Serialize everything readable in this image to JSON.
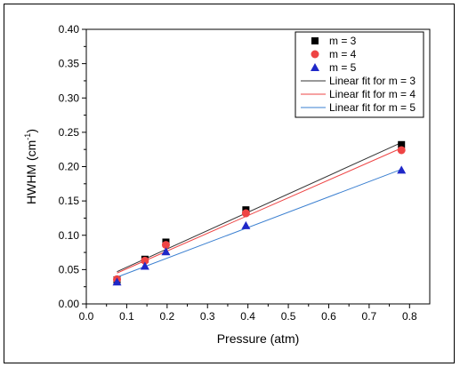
{
  "chart_data": {
    "type": "scatter",
    "title": "",
    "xlabel": "Pressure (atm)",
    "ylabel_main": "HWHM (cm",
    "ylabel_sup": "-1",
    "ylabel_close": ")",
    "xlim": [
      0.0,
      0.85
    ],
    "ylim": [
      0.0,
      0.4
    ],
    "xticks": [
      0.0,
      0.1,
      0.2,
      0.3,
      0.4,
      0.5,
      0.6,
      0.7,
      0.8
    ],
    "xtick_labels": [
      "0.0",
      "0.1",
      "0.2",
      "0.3",
      "0.4",
      "0.5",
      "0.6",
      "0.7",
      "0.8"
    ],
    "yticks": [
      0.0,
      0.05,
      0.1,
      0.15,
      0.2,
      0.25,
      0.3,
      0.35,
      0.4
    ],
    "ytick_labels": [
      "0.00",
      "0.05",
      "0.10",
      "0.15",
      "0.20",
      "0.25",
      "0.30",
      "0.35",
      "0.40"
    ],
    "grid": false,
    "legend_position": "top-right",
    "series": [
      {
        "name": "m = 3",
        "marker": "square",
        "color": "#000000",
        "x": [
          0.076,
          0.145,
          0.197,
          0.395,
          0.78
        ],
        "y": [
          0.035,
          0.065,
          0.09,
          0.137,
          0.232
        ]
      },
      {
        "name": "m = 4",
        "marker": "circle",
        "color": "#ee4444",
        "x": [
          0.076,
          0.145,
          0.197,
          0.395,
          0.78
        ],
        "y": [
          0.036,
          0.063,
          0.086,
          0.132,
          0.224
        ]
      },
      {
        "name": "m = 5",
        "marker": "triangle",
        "color": "#1f28c8",
        "x": [
          0.076,
          0.145,
          0.197,
          0.395,
          0.78
        ],
        "y": [
          0.032,
          0.055,
          0.076,
          0.114,
          0.195
        ]
      }
    ],
    "fits": [
      {
        "name": "Linear fit for m = 3",
        "color": "#333333",
        "x": [
          0.076,
          0.78
        ],
        "y": [
          0.047,
          0.235
        ]
      },
      {
        "name": "Linear fit for m = 4",
        "color": "#ee4444",
        "x": [
          0.076,
          0.78
        ],
        "y": [
          0.045,
          0.227
        ]
      },
      {
        "name": "Linear fit for m = 5",
        "color": "#3a7fd0",
        "x": [
          0.076,
          0.78
        ],
        "y": [
          0.039,
          0.196
        ]
      }
    ]
  }
}
